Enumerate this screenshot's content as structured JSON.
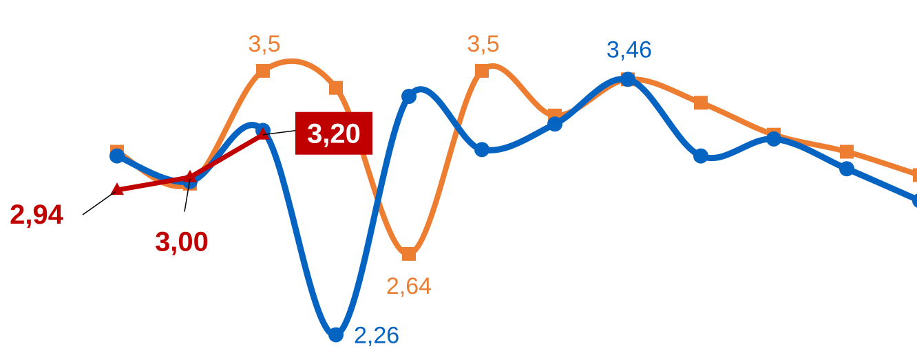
{
  "chart_data": {
    "type": "line",
    "smooth": true,
    "grid": false,
    "legend": "none",
    "x": [
      1,
      2,
      3,
      4,
      5,
      6,
      7,
      8,
      9,
      10,
      11,
      12
    ],
    "ylim": [
      2.2,
      3.6
    ],
    "series": [
      {
        "key": "orange",
        "color": "#ed7d31",
        "marker": "square",
        "values": [
          3.12,
          2.97,
          3.5,
          3.42,
          2.64,
          3.5,
          3.29,
          3.46,
          3.35,
          3.2,
          3.12,
          3.01
        ]
      },
      {
        "key": "blue",
        "color": "#0563c1",
        "marker": "circle",
        "values": [
          3.1,
          2.98,
          3.22,
          2.26,
          3.38,
          3.13,
          3.25,
          3.46,
          3.1,
          3.18,
          3.04,
          2.89
        ]
      },
      {
        "key": "red",
        "color": "#c00000",
        "marker": "triangle",
        "values": [
          2.94,
          3.0,
          3.2,
          null,
          null,
          null,
          null,
          null,
          null,
          null,
          null,
          null
        ]
      }
    ],
    "annotations": [
      {
        "series": "orange",
        "index": 2,
        "text": "3,5",
        "pos": "above"
      },
      {
        "series": "orange",
        "index": 5,
        "text": "3,5",
        "pos": "above"
      },
      {
        "series": "orange",
        "index": 4,
        "text": "2,64",
        "pos": "below"
      },
      {
        "series": "blue",
        "index": 7,
        "text": "3,46",
        "pos": "above"
      },
      {
        "series": "blue",
        "index": 3,
        "text": "2,26",
        "pos": "right"
      },
      {
        "series": "red",
        "index": 0,
        "text": "2,94",
        "pos": "left-callout",
        "bold": true
      },
      {
        "series": "red",
        "index": 1,
        "text": "3,00",
        "pos": "below-callout",
        "bold": true
      },
      {
        "series": "red",
        "index": 2,
        "text": "3,20",
        "pos": "right-boxed",
        "bold": true,
        "box": "#c00000"
      }
    ]
  }
}
